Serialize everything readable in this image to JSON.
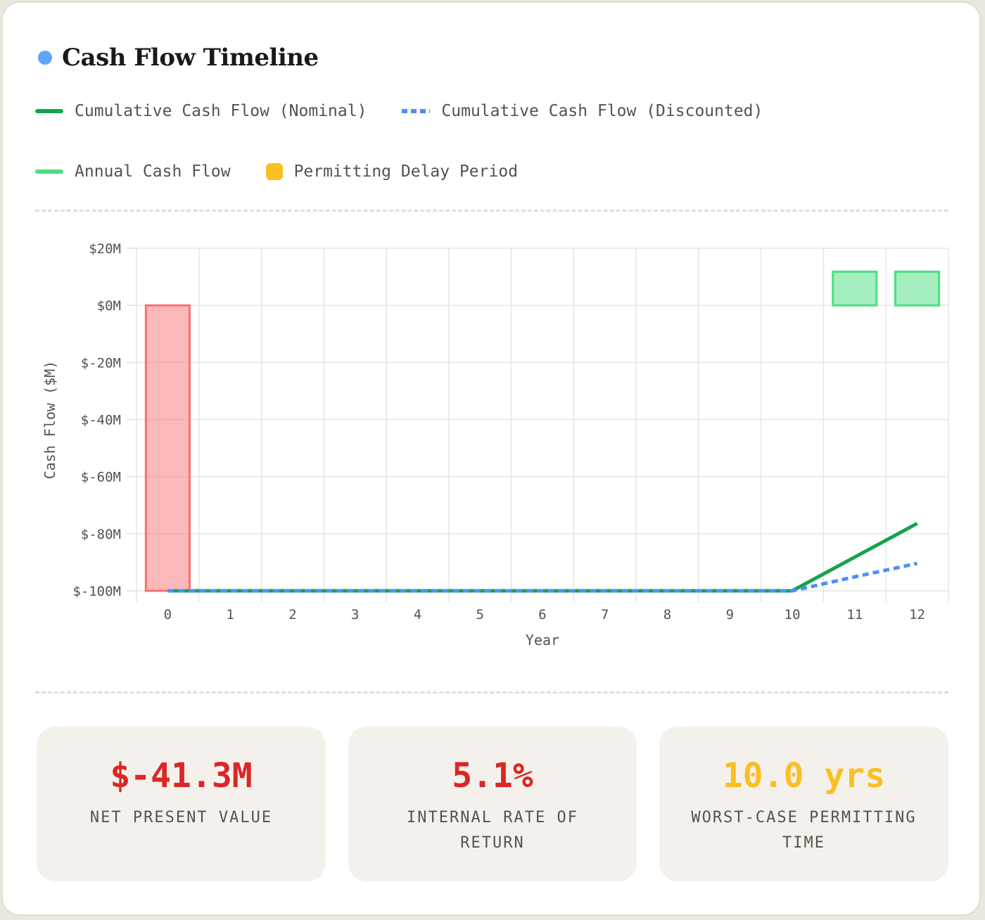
{
  "title": "Cash Flow Timeline",
  "colors": {
    "title_dot": "#60a5fa",
    "nominal": "#16a34a",
    "discounted": "#4f8ff7",
    "annual": "#4ade80",
    "permitting": "#fbbf24",
    "negative_bar": "#f87171"
  },
  "legend": [
    {
      "label": "Cumulative Cash Flow (Nominal)",
      "style": "solid-line",
      "color": "#16a34a"
    },
    {
      "label": "Cumulative Cash Flow (Discounted)",
      "style": "dotted-line",
      "color": "#4f8ff7"
    },
    {
      "label": "Annual Cash Flow",
      "style": "solid-line",
      "color": "#4ade80"
    },
    {
      "label": "Permitting Delay Period",
      "style": "square",
      "color": "#fbbf24"
    }
  ],
  "chart_data": {
    "type": "bar",
    "xlabel": "Year",
    "ylabel": "Cash Flow ($M)",
    "x": [
      0,
      1,
      2,
      3,
      4,
      5,
      6,
      7,
      8,
      9,
      10,
      11,
      12
    ],
    "ylim": [
      -100,
      20
    ],
    "yticks": [
      20,
      0,
      -20,
      -40,
      -60,
      -80,
      -100
    ],
    "ytick_labels": [
      "$20M",
      "$0M",
      "$-20M",
      "$-40M",
      "$-60M",
      "$-80M",
      "$-100M"
    ],
    "grid": true,
    "series": [
      {
        "name": "Annual Cash Flow",
        "kind": "bar",
        "values": [
          -100,
          0,
          0,
          0,
          0,
          0,
          0,
          0,
          0,
          0,
          0,
          11.8,
          11.8
        ]
      },
      {
        "name": "Cumulative Cash Flow (Nominal)",
        "kind": "line",
        "values": [
          -100,
          -100,
          -100,
          -100,
          -100,
          -100,
          -100,
          -100,
          -100,
          -100,
          -100,
          -88.2,
          -76.4
        ]
      },
      {
        "name": "Cumulative Cash Flow (Discounted)",
        "kind": "dotted-line",
        "values": [
          -100,
          -100,
          -100,
          -100,
          -100,
          -100,
          -100,
          -100,
          -100,
          -100,
          -100,
          -95.1,
          -90.4
        ]
      }
    ]
  },
  "stats": [
    {
      "value": "$-41.3M",
      "label": "NET PRESENT VALUE",
      "color": "#dc2626"
    },
    {
      "value": "5.1%",
      "label": "INTERNAL RATE OF RETURN",
      "color": "#dc2626"
    },
    {
      "value": "10.0 yrs",
      "label": "WORST-CASE PERMITTING TIME",
      "color": "#fbbf24"
    }
  ]
}
